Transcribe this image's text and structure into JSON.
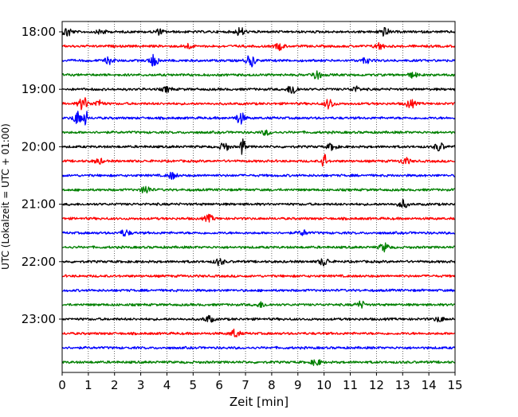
{
  "chart_data": {
    "type": "line",
    "title": "",
    "xlabel": "Zeit  [min]",
    "ylabel": "UTC (Lokalzeit = UTC + 01:00)",
    "xlim": [
      0,
      15
    ],
    "x_ticks": [
      "0",
      "1",
      "2",
      "3",
      "4",
      "5",
      "6",
      "7",
      "8",
      "9",
      "10",
      "11",
      "12",
      "13",
      "14",
      "15"
    ],
    "y_tick_labels": [
      "18:00",
      "19:00",
      "20:00",
      "21:00",
      "22:00",
      "23:00"
    ],
    "grid": "vertical dotted at each minute",
    "trace_interval_minutes": 15,
    "trace_colors": [
      "#000000",
      "#ff0000",
      "#0000ff",
      "#008000"
    ],
    "traces": [
      {
        "start": "18:00",
        "color": "#000000",
        "events": [
          [
            0.2,
            6
          ],
          [
            1.5,
            3
          ],
          [
            3.7,
            3
          ],
          [
            6.8,
            5
          ],
          [
            12.3,
            5
          ]
        ]
      },
      {
        "start": "18:15",
        "color": "#ff0000",
        "events": [
          [
            4.8,
            3
          ],
          [
            8.3,
            4
          ],
          [
            12.1,
            4
          ]
        ]
      },
      {
        "start": "18:30",
        "color": "#0000ff",
        "events": [
          [
            1.8,
            4
          ],
          [
            3.5,
            7
          ],
          [
            7.2,
            7
          ],
          [
            11.6,
            3
          ]
        ]
      },
      {
        "start": "18:45",
        "color": "#008000",
        "events": [
          [
            9.7,
            6
          ],
          [
            13.4,
            3
          ]
        ]
      },
      {
        "start": "19:00",
        "color": "#000000",
        "events": [
          [
            4.0,
            3
          ],
          [
            8.8,
            7
          ],
          [
            11.2,
            3
          ]
        ]
      },
      {
        "start": "19:15",
        "color": "#ff0000",
        "events": [
          [
            0.8,
            8
          ],
          [
            1.4,
            4
          ],
          [
            10.2,
            6
          ],
          [
            13.3,
            5
          ]
        ]
      },
      {
        "start": "19:30",
        "color": "#0000ff",
        "events": [
          [
            0.6,
            8
          ],
          [
            0.9,
            10
          ],
          [
            6.8,
            7
          ]
        ]
      },
      {
        "start": "19:45",
        "color": "#008000",
        "events": [
          [
            7.8,
            3
          ]
        ]
      },
      {
        "start": "20:00",
        "color": "#000000",
        "events": [
          [
            6.2,
            5
          ],
          [
            6.9,
            16
          ],
          [
            10.3,
            4
          ],
          [
            14.4,
            5
          ]
        ]
      },
      {
        "start": "20:15",
        "color": "#ff0000",
        "events": [
          [
            1.4,
            3
          ],
          [
            10.0,
            12
          ],
          [
            13.1,
            4
          ]
        ]
      },
      {
        "start": "20:30",
        "color": "#0000ff",
        "events": [
          [
            4.2,
            4
          ]
        ]
      },
      {
        "start": "20:45",
        "color": "#008000",
        "events": [
          [
            3.2,
            5
          ]
        ]
      },
      {
        "start": "21:00",
        "color": "#000000",
        "events": [
          [
            13.0,
            5
          ]
        ]
      },
      {
        "start": "21:15",
        "color": "#ff0000",
        "events": [
          [
            5.6,
            4
          ]
        ]
      },
      {
        "start": "21:30",
        "color": "#0000ff",
        "events": [
          [
            2.4,
            4
          ],
          [
            9.2,
            3
          ]
        ]
      },
      {
        "start": "21:45",
        "color": "#008000",
        "events": [
          [
            12.3,
            5
          ]
        ]
      },
      {
        "start": "22:00",
        "color": "#000000",
        "events": [
          [
            6.0,
            4
          ],
          [
            10.0,
            5
          ]
        ]
      },
      {
        "start": "22:15",
        "color": "#ff0000",
        "events": []
      },
      {
        "start": "22:30",
        "color": "#0000ff",
        "events": []
      },
      {
        "start": "22:45",
        "color": "#008000",
        "events": [
          [
            7.6,
            3
          ],
          [
            11.4,
            4
          ]
        ]
      },
      {
        "start": "23:00",
        "color": "#000000",
        "events": [
          [
            5.6,
            4
          ],
          [
            14.4,
            3
          ]
        ]
      },
      {
        "start": "23:15",
        "color": "#ff0000",
        "events": [
          [
            6.6,
            5
          ]
        ]
      },
      {
        "start": "23:30",
        "color": "#0000ff",
        "events": []
      },
      {
        "start": "23:45",
        "color": "#008000",
        "events": [
          [
            9.7,
            4
          ]
        ]
      }
    ]
  }
}
